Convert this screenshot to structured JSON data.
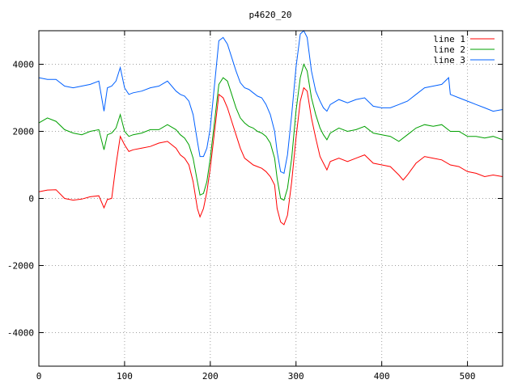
{
  "chart_data": {
    "type": "line",
    "title": "p4620_20",
    "xlabel": "",
    "ylabel": "",
    "xlim": [
      0,
      541
    ],
    "ylim": [
      -5000,
      5000
    ],
    "xticks": [
      0,
      100,
      200,
      300,
      400,
      500
    ],
    "yticks": [
      -4000,
      -2000,
      0,
      2000,
      4000
    ],
    "grid": true,
    "legend_position": "top-right",
    "series": [
      {
        "name": "line 1",
        "color": "#ff0000",
        "points": [
          [
            0,
            200
          ],
          [
            10,
            250
          ],
          [
            20,
            260
          ],
          [
            30,
            0
          ],
          [
            40,
            -50
          ],
          [
            50,
            -20
          ],
          [
            60,
            50
          ],
          [
            70,
            80
          ],
          [
            76,
            -280
          ],
          [
            80,
            -30
          ],
          [
            85,
            0
          ],
          [
            90,
            1000
          ],
          [
            95,
            1850
          ],
          [
            100,
            1600
          ],
          [
            105,
            1400
          ],
          [
            110,
            1450
          ],
          [
            120,
            1500
          ],
          [
            130,
            1550
          ],
          [
            140,
            1650
          ],
          [
            150,
            1700
          ],
          [
            160,
            1500
          ],
          [
            165,
            1300
          ],
          [
            170,
            1200
          ],
          [
            175,
            1000
          ],
          [
            180,
            500
          ],
          [
            185,
            -300
          ],
          [
            188,
            -550
          ],
          [
            192,
            -300
          ],
          [
            196,
            200
          ],
          [
            200,
            900
          ],
          [
            205,
            2000
          ],
          [
            210,
            3100
          ],
          [
            215,
            3000
          ],
          [
            220,
            2700
          ],
          [
            225,
            2300
          ],
          [
            230,
            1900
          ],
          [
            235,
            1500
          ],
          [
            240,
            1200
          ],
          [
            245,
            1100
          ],
          [
            250,
            1000
          ],
          [
            255,
            950
          ],
          [
            260,
            900
          ],
          [
            265,
            800
          ],
          [
            270,
            650
          ],
          [
            275,
            400
          ],
          [
            278,
            -300
          ],
          [
            282,
            -700
          ],
          [
            286,
            -780
          ],
          [
            290,
            -500
          ],
          [
            295,
            500
          ],
          [
            300,
            1800
          ],
          [
            305,
            2900
          ],
          [
            309,
            3300
          ],
          [
            313,
            3200
          ],
          [
            318,
            2400
          ],
          [
            323,
            1800
          ],
          [
            328,
            1250
          ],
          [
            332,
            1050
          ],
          [
            336,
            850
          ],
          [
            340,
            1100
          ],
          [
            350,
            1200
          ],
          [
            360,
            1100
          ],
          [
            370,
            1200
          ],
          [
            380,
            1300
          ],
          [
            390,
            1050
          ],
          [
            400,
            1000
          ],
          [
            410,
            950
          ],
          [
            420,
            700
          ],
          [
            425,
            550
          ],
          [
            430,
            700
          ],
          [
            440,
            1050
          ],
          [
            450,
            1250
          ],
          [
            460,
            1200
          ],
          [
            470,
            1150
          ],
          [
            480,
            1000
          ],
          [
            490,
            950
          ],
          [
            500,
            800
          ],
          [
            510,
            750
          ],
          [
            520,
            650
          ],
          [
            530,
            700
          ],
          [
            541,
            650
          ]
        ]
      },
      {
        "name": "line 2",
        "color": "#00a000",
        "points": [
          [
            0,
            2250
          ],
          [
            10,
            2400
          ],
          [
            20,
            2300
          ],
          [
            30,
            2050
          ],
          [
            40,
            1950
          ],
          [
            50,
            1900
          ],
          [
            60,
            2000
          ],
          [
            70,
            2050
          ],
          [
            76,
            1450
          ],
          [
            80,
            1900
          ],
          [
            85,
            1950
          ],
          [
            90,
            2100
          ],
          [
            95,
            2500
          ],
          [
            100,
            2000
          ],
          [
            105,
            1850
          ],
          [
            110,
            1900
          ],
          [
            120,
            1950
          ],
          [
            130,
            2050
          ],
          [
            140,
            2050
          ],
          [
            150,
            2200
          ],
          [
            160,
            2050
          ],
          [
            165,
            1900
          ],
          [
            170,
            1800
          ],
          [
            175,
            1600
          ],
          [
            180,
            1200
          ],
          [
            185,
            500
          ],
          [
            188,
            100
          ],
          [
            192,
            150
          ],
          [
            196,
            500
          ],
          [
            200,
            1200
          ],
          [
            205,
            2300
          ],
          [
            210,
            3400
          ],
          [
            215,
            3600
          ],
          [
            220,
            3500
          ],
          [
            225,
            3100
          ],
          [
            230,
            2700
          ],
          [
            235,
            2400
          ],
          [
            240,
            2250
          ],
          [
            245,
            2150
          ],
          [
            250,
            2100
          ],
          [
            255,
            2000
          ],
          [
            260,
            1950
          ],
          [
            265,
            1850
          ],
          [
            270,
            1650
          ],
          [
            275,
            1200
          ],
          [
            278,
            600
          ],
          [
            282,
            0
          ],
          [
            286,
            -50
          ],
          [
            290,
            300
          ],
          [
            295,
            1200
          ],
          [
            300,
            2600
          ],
          [
            305,
            3600
          ],
          [
            309,
            4000
          ],
          [
            313,
            3800
          ],
          [
            318,
            3000
          ],
          [
            323,
            2500
          ],
          [
            328,
            2100
          ],
          [
            332,
            1900
          ],
          [
            336,
            1750
          ],
          [
            340,
            1950
          ],
          [
            350,
            2100
          ],
          [
            360,
            2000
          ],
          [
            370,
            2050
          ],
          [
            380,
            2150
          ],
          [
            390,
            1950
          ],
          [
            400,
            1900
          ],
          [
            410,
            1850
          ],
          [
            420,
            1700
          ],
          [
            430,
            1900
          ],
          [
            440,
            2100
          ],
          [
            450,
            2200
          ],
          [
            460,
            2150
          ],
          [
            470,
            2200
          ],
          [
            480,
            2000
          ],
          [
            490,
            2000
          ],
          [
            500,
            1850
          ],
          [
            510,
            1850
          ],
          [
            520,
            1800
          ],
          [
            530,
            1850
          ],
          [
            541,
            1750
          ]
        ]
      },
      {
        "name": "line 3",
        "color": "#0060ff",
        "points": [
          [
            0,
            3600
          ],
          [
            10,
            3550
          ],
          [
            20,
            3550
          ],
          [
            30,
            3350
          ],
          [
            40,
            3300
          ],
          [
            50,
            3350
          ],
          [
            60,
            3400
          ],
          [
            70,
            3500
          ],
          [
            76,
            2600
          ],
          [
            80,
            3300
          ],
          [
            85,
            3350
          ],
          [
            90,
            3500
          ],
          [
            95,
            3900
          ],
          [
            100,
            3300
          ],
          [
            105,
            3100
          ],
          [
            110,
            3150
          ],
          [
            120,
            3200
          ],
          [
            130,
            3300
          ],
          [
            140,
            3350
          ],
          [
            150,
            3500
          ],
          [
            160,
            3200
          ],
          [
            165,
            3100
          ],
          [
            170,
            3050
          ],
          [
            175,
            2900
          ],
          [
            180,
            2500
          ],
          [
            185,
            1700
          ],
          [
            188,
            1250
          ],
          [
            192,
            1250
          ],
          [
            196,
            1500
          ],
          [
            200,
            2100
          ],
          [
            205,
            3400
          ],
          [
            210,
            4700
          ],
          [
            215,
            4800
          ],
          [
            220,
            4600
          ],
          [
            225,
            4200
          ],
          [
            230,
            3800
          ],
          [
            235,
            3450
          ],
          [
            240,
            3300
          ],
          [
            245,
            3250
          ],
          [
            250,
            3150
          ],
          [
            255,
            3050
          ],
          [
            260,
            3000
          ],
          [
            265,
            2800
          ],
          [
            270,
            2500
          ],
          [
            275,
            2000
          ],
          [
            278,
            1400
          ],
          [
            282,
            800
          ],
          [
            286,
            750
          ],
          [
            290,
            1300
          ],
          [
            295,
            2500
          ],
          [
            300,
            3900
          ],
          [
            305,
            4900
          ],
          [
            309,
            5000
          ],
          [
            313,
            4800
          ],
          [
            318,
            3800
          ],
          [
            323,
            3200
          ],
          [
            328,
            2900
          ],
          [
            332,
            2700
          ],
          [
            336,
            2600
          ],
          [
            340,
            2800
          ],
          [
            350,
            2950
          ],
          [
            360,
            2850
          ],
          [
            370,
            2950
          ],
          [
            380,
            3000
          ],
          [
            390,
            2750
          ],
          [
            400,
            2700
          ],
          [
            410,
            2700
          ],
          [
            420,
            2800
          ],
          [
            430,
            2900
          ],
          [
            440,
            3100
          ],
          [
            450,
            3300
          ],
          [
            460,
            3350
          ],
          [
            470,
            3400
          ],
          [
            478,
            3600
          ],
          [
            480,
            3100
          ],
          [
            490,
            3000
          ],
          [
            500,
            2900
          ],
          [
            510,
            2800
          ],
          [
            520,
            2700
          ],
          [
            530,
            2600
          ],
          [
            541,
            2650
          ]
        ]
      }
    ]
  }
}
